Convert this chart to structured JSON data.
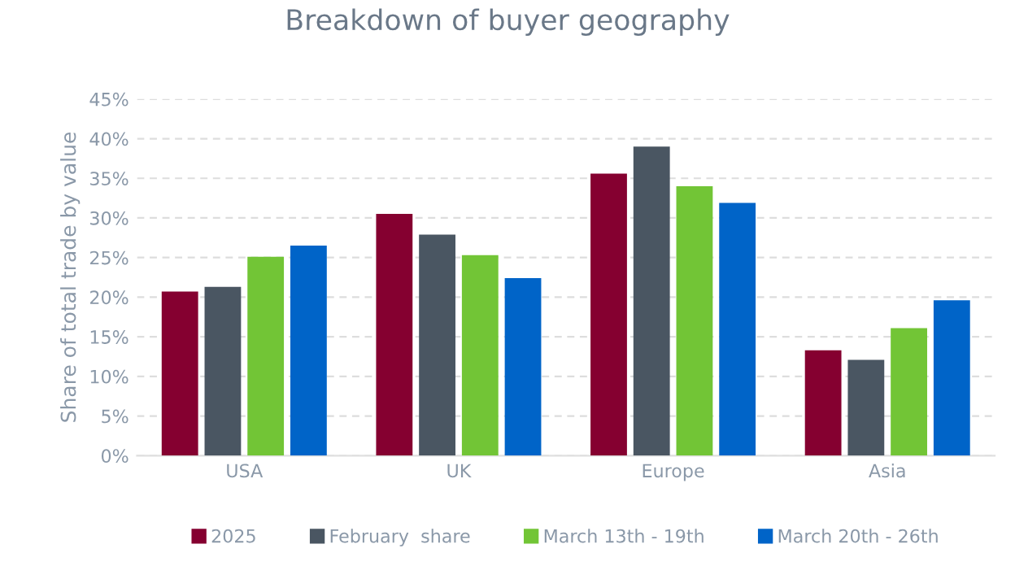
{
  "chart_data": {
    "type": "bar",
    "title": "Breakdown of buyer geography",
    "ylabel": "Share of total trade by value",
    "categories": [
      "USA",
      "UK",
      "Europe",
      "Asia"
    ],
    "series": [
      {
        "name": "2025",
        "color": "#850030",
        "values": [
          20.7,
          30.5,
          35.6,
          13.3
        ]
      },
      {
        "name": "February  share",
        "color": "#4a5662",
        "values": [
          21.3,
          27.9,
          39.0,
          12.1
        ]
      },
      {
        "name": "March 13th - 19th",
        "color": "#72c536",
        "values": [
          25.1,
          25.3,
          34.0,
          16.1
        ]
      },
      {
        "name": "March 20th - 26th",
        "color": "#0064c8",
        "values": [
          26.5,
          22.4,
          31.9,
          19.6
        ]
      }
    ],
    "ylim": [
      0,
      45
    ],
    "yticks": [
      {
        "value": 0,
        "label": "0%"
      },
      {
        "value": 5,
        "label": "5%"
      },
      {
        "value": 10,
        "label": "10%"
      },
      {
        "value": 15,
        "label": "15%"
      },
      {
        "value": 20,
        "label": "20%"
      },
      {
        "value": 25,
        "label": "25%"
      },
      {
        "value": 30,
        "label": "30%"
      },
      {
        "value": 35,
        "label": "35%"
      },
      {
        "value": 40,
        "label": "40%"
      },
      {
        "value": 45,
        "label": "45%"
      }
    ],
    "grid": "y",
    "legend": "bottom"
  }
}
